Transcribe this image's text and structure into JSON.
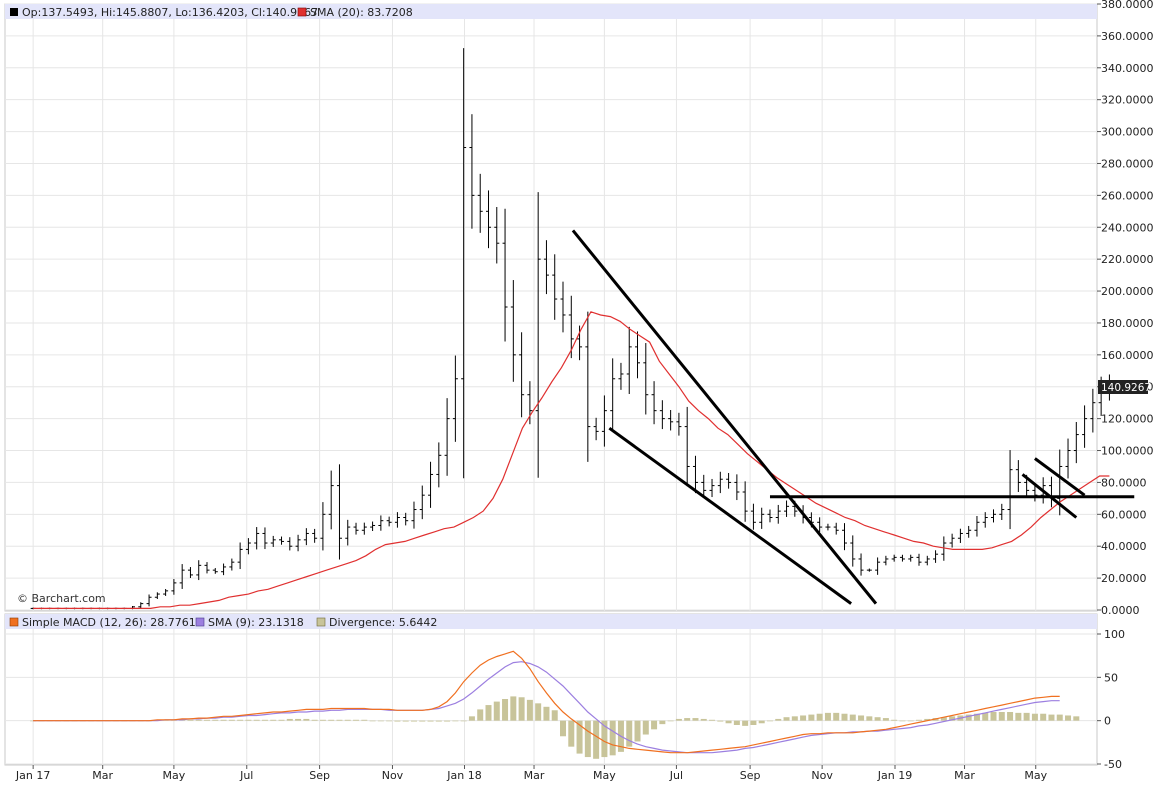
{
  "price_legend": {
    "ohlc": "Op:137.5493, Hi:145.8807, Lo:136.4203, Cl:140.9267",
    "sma": "SMA (20): 83.7208"
  },
  "macd_legend": {
    "macd": "Simple MACD (12, 26): 28.7761",
    "signal": "SMA (9): 23.1318",
    "divergence": "Divergence: 5.6442"
  },
  "watermark": "© Barchart.com",
  "last_price_label": "140.9267",
  "colors": {
    "sma": "#e03030",
    "macd": "#f07020",
    "signal": "#9c7fe0",
    "divergence": "#c8c49a",
    "bars": "#000000",
    "legend_band": "#e3e5fa",
    "grid": "#e6e6e6"
  },
  "chart_data": [
    {
      "type": "ohlc",
      "title": "",
      "ylim": [
        0,
        380
      ],
      "y_ticks": [
        "0.0000",
        "20.0000",
        "40.0000",
        "60.0000",
        "80.0000",
        "100.0000",
        "120.0000",
        "140.0000",
        "160.0000",
        "180.0000",
        "200.0000",
        "220.0000",
        "240.0000",
        "260.0000",
        "280.0000",
        "300.0000",
        "320.0000",
        "340.0000",
        "360.0000",
        "380.0000"
      ],
      "x_ticks": [
        {
          "label": "Jan 17",
          "week": 0
        },
        {
          "label": "Mar",
          "week": 8.4
        },
        {
          "label": "May",
          "week": 17
        },
        {
          "label": "Jul",
          "week": 25.8
        },
        {
          "label": "Sep",
          "week": 34.6
        },
        {
          "label": "Nov",
          "week": 43.4
        },
        {
          "label": "Jan 18",
          "week": 52.1
        },
        {
          "label": "Mar",
          "week": 60.5
        },
        {
          "label": "May",
          "week": 69
        },
        {
          "label": "Jul",
          "week": 77.7
        },
        {
          "label": "Sep",
          "week": 86.6
        },
        {
          "label": "Nov",
          "week": 95.3
        },
        {
          "label": "Jan 19",
          "week": 104.1
        },
        {
          "label": "Mar",
          "week": 112.5
        },
        {
          "label": "May",
          "week": 121.1
        }
      ],
      "x_range_weeks": [
        -3.4,
        128.5
      ],
      "bars_close": [
        1,
        1,
        1,
        1,
        1,
        1,
        1,
        1,
        1,
        1,
        1,
        1,
        2,
        4,
        8,
        10,
        12,
        17,
        25,
        22,
        28,
        25,
        24,
        27,
        30,
        38,
        42,
        48,
        42,
        44,
        43,
        40,
        44,
        48,
        45,
        60,
        78,
        45,
        52,
        50,
        52,
        53,
        56,
        55,
        58,
        56,
        63,
        72,
        85,
        97,
        120,
        145,
        290,
        260,
        250,
        240,
        230,
        190,
        160,
        135,
        125,
        220,
        210,
        195,
        185,
        170,
        165,
        115,
        112,
        125,
        145,
        148,
        165,
        155,
        135,
        125,
        120,
        118,
        115,
        90,
        80,
        75,
        78,
        82,
        80,
        74,
        62,
        55,
        60,
        58,
        62,
        65,
        62,
        58,
        55,
        52,
        52,
        50,
        42,
        32,
        25,
        25,
        30,
        32,
        33,
        32,
        33,
        30,
        32,
        35,
        42,
        45,
        48,
        50,
        55,
        58,
        60,
        63,
        88,
        80,
        75,
        72,
        78,
        70,
        90,
        100,
        110,
        120,
        130,
        138,
        141
      ],
      "sma_20": [
        1,
        1,
        1,
        1,
        1,
        1,
        1,
        1,
        1,
        1,
        1,
        1,
        1,
        2,
        2,
        3,
        3,
        4,
        5,
        6,
        8,
        9,
        10,
        12,
        13,
        15,
        17,
        19,
        21,
        23,
        25,
        27,
        29,
        31,
        34,
        38,
        41,
        42,
        43,
        45,
        47,
        49,
        51,
        52,
        55,
        58,
        62,
        70,
        82,
        98,
        114,
        124,
        133,
        143,
        152,
        163,
        176,
        187,
        185,
        184,
        181,
        176,
        172,
        168,
        156,
        148,
        140,
        131,
        125,
        120,
        114,
        110,
        104,
        98,
        93,
        88,
        83,
        79,
        75,
        71,
        67,
        64,
        61,
        58,
        56,
        53,
        51,
        49,
        47,
        45,
        43,
        42,
        40,
        39,
        38,
        38,
        38,
        38,
        39,
        41,
        43,
        47,
        52,
        58,
        63,
        68,
        72,
        76,
        80,
        84,
        84
      ],
      "trendlines": [
        {
          "from": [
            65.2,
            238
          ],
          "to": [
            101.8,
            4
          ]
        },
        {
          "from": [
            69.6,
            114
          ],
          "to": [
            98.8,
            4
          ]
        },
        {
          "from": [
            89,
            71
          ],
          "to": [
            133,
            71
          ]
        },
        {
          "from": [
            121,
            95
          ],
          "to": [
            127,
            72
          ]
        },
        {
          "from": [
            119.5,
            85
          ],
          "to": [
            126,
            58
          ]
        }
      ]
    },
    {
      "type": "line",
      "title": "",
      "ylim": [
        -50,
        100
      ],
      "y_ticks": [
        "100",
        "50",
        "0",
        "-50"
      ],
      "series": [
        {
          "name": "Simple MACD (12, 26)",
          "values": [
            0,
            0,
            0,
            0,
            0,
            0,
            0,
            0,
            0,
            0,
            0,
            0,
            0,
            0,
            0,
            1,
            1,
            1,
            2,
            2,
            3,
            3,
            4,
            5,
            5,
            6,
            7,
            8,
            9,
            10,
            10,
            11,
            12,
            13,
            13,
            13,
            14,
            14,
            14,
            14,
            14,
            13,
            13,
            13,
            12,
            12,
            12,
            12,
            13,
            16,
            22,
            32,
            45,
            55,
            64,
            70,
            74,
            77,
            80,
            72,
            60,
            45,
            32,
            20,
            10,
            2,
            -5,
            -12,
            -18,
            -24,
            -28,
            -30,
            -32,
            -33,
            -34,
            -35,
            -36,
            -37,
            -37,
            -37,
            -36,
            -35,
            -34,
            -33,
            -32,
            -31,
            -30,
            -28,
            -26,
            -24,
            -22,
            -20,
            -18,
            -16,
            -15,
            -15,
            -14,
            -14,
            -14,
            -14,
            -13,
            -12,
            -11,
            -10,
            -8,
            -6,
            -4,
            -2,
            0,
            2,
            4,
            6,
            8,
            10,
            12,
            14,
            16,
            18,
            20,
            22,
            24,
            26,
            27,
            28,
            28
          ]
        },
        {
          "name": "SMA (9)",
          "values": [
            0,
            0,
            0,
            0,
            0,
            0,
            0,
            0,
            0,
            0,
            0,
            0,
            0,
            0,
            0,
            0,
            1,
            1,
            1,
            2,
            2,
            3,
            3,
            4,
            4,
            5,
            6,
            6,
            7,
            8,
            9,
            9,
            10,
            10,
            11,
            11,
            12,
            12,
            13,
            13,
            13,
            13,
            13,
            12,
            12,
            12,
            12,
            12,
            13,
            14,
            17,
            20,
            25,
            32,
            40,
            48,
            55,
            62,
            67,
            68,
            66,
            62,
            56,
            48,
            40,
            30,
            20,
            10,
            2,
            -6,
            -12,
            -18,
            -23,
            -27,
            -30,
            -32,
            -34,
            -35,
            -36,
            -37,
            -37,
            -37,
            -37,
            -36,
            -35,
            -34,
            -32,
            -31,
            -29,
            -27,
            -25,
            -23,
            -21,
            -19,
            -17,
            -16,
            -15,
            -14,
            -14,
            -13,
            -13,
            -12,
            -12,
            -11,
            -10,
            -9,
            -8,
            -6,
            -5,
            -3,
            -1,
            1,
            3,
            5,
            7,
            9,
            11,
            13,
            15,
            17,
            19,
            21,
            22,
            23,
            23
          ]
        }
      ],
      "divergence": [
        0,
        0,
        0,
        0,
        0,
        0,
        0,
        0,
        0,
        0,
        0,
        0,
        0,
        0,
        0,
        1,
        1,
        1,
        1,
        1,
        1,
        1,
        1,
        1,
        1,
        1,
        1,
        1,
        1,
        1,
        1,
        2,
        2,
        2,
        1,
        1,
        1,
        1,
        1,
        1,
        1,
        0,
        0,
        0,
        -1,
        -1,
        -1,
        -1,
        -1,
        -1,
        -1,
        0,
        0,
        5,
        13,
        18,
        22,
        25,
        28,
        27,
        24,
        20,
        16,
        12,
        -18,
        -30,
        -38,
        -42,
        -44,
        -42,
        -40,
        -36,
        -30,
        -24,
        -16,
        -10,
        -4,
        0,
        2,
        3,
        3,
        2,
        1,
        -1,
        -3,
        -5,
        -6,
        -5,
        -3,
        0,
        2,
        4,
        5,
        6,
        7,
        8,
        9,
        9,
        8,
        7,
        6,
        5,
        4,
        3,
        1,
        0,
        0,
        1,
        2,
        3,
        4,
        5,
        6,
        7,
        8,
        9,
        10,
        10,
        10,
        9,
        9,
        8,
        8,
        7,
        7,
        6,
        5
      ]
    }
  ]
}
